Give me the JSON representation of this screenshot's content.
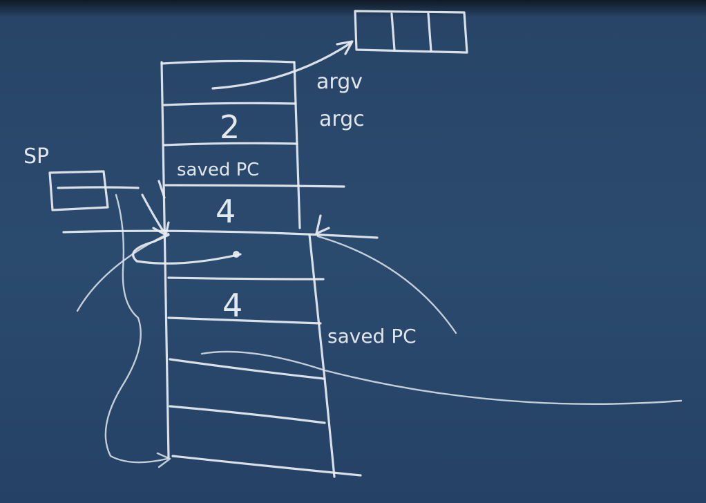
{
  "labels": {
    "sp": "SP",
    "argv": "argv",
    "argc": "argc",
    "saved_pc_upper": "saved PC",
    "saved_pc_lower": "saved PC"
  },
  "stack_cells": {
    "argc_value": "2",
    "frame_size_upper": "4",
    "frame_size_lower": "4"
  },
  "colors": {
    "board": "#2a4a6e",
    "chalk": "#e9eef2"
  }
}
